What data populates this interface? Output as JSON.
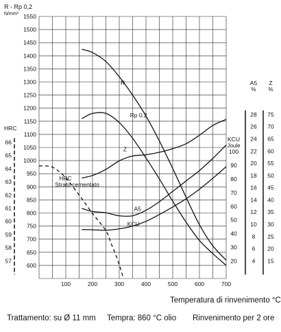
{
  "chart_data": {
    "type": "line",
    "title": "",
    "xlabel": "Temperatura di rinvenimento °C",
    "x_range": [
      0,
      700
    ],
    "x_ticks": [
      100,
      200,
      300,
      400,
      500,
      600,
      700
    ],
    "grid": true,
    "axes": {
      "strength": {
        "label_line1": "R - Rp 0,2",
        "label_line2": "N/mm²",
        "range": [
          550,
          1550
        ],
        "ticks": [
          600,
          650,
          700,
          750,
          800,
          850,
          900,
          950,
          1000,
          1050,
          1100,
          1150,
          1200,
          1250,
          1300,
          1350,
          1400,
          1450,
          1500,
          1550
        ]
      },
      "hrc": {
        "label": "HRC",
        "ticks": [
          57,
          58,
          59,
          60,
          61,
          62,
          63,
          64,
          65,
          66
        ],
        "mapping_strength": [
          617,
          1070
        ]
      },
      "kcu": {
        "label_line1": "KCU",
        "label_line2": "Joule",
        "range": [
          20,
          100
        ],
        "ticks": [
          20,
          30,
          40,
          50,
          60,
          70,
          80,
          90,
          100
        ],
        "mapping_strength": [
          617,
          1034
        ]
      },
      "a5": {
        "label_line1": "A5",
        "label_line2": "%",
        "range": [
          4,
          28
        ],
        "ticks": [
          4,
          6,
          8,
          10,
          12,
          14,
          16,
          18,
          20,
          22,
          24,
          26,
          28
        ],
        "mapping_strength": [
          617,
          1176
        ]
      },
      "z": {
        "label_line1": "Z",
        "label_line2": "%",
        "range": [
          15,
          75
        ],
        "ticks": [
          15,
          20,
          25,
          30,
          35,
          40,
          45,
          50,
          55,
          60,
          65,
          70,
          75
        ],
        "mapping_strength": [
          617,
          1176
        ]
      }
    },
    "series": [
      {
        "name": "R",
        "axis": "strength",
        "style": "solid",
        "x": [
          160,
          200,
          250,
          300,
          350,
          400,
          450,
          500,
          550,
          600,
          650,
          700
        ],
        "y": [
          1425,
          1412,
          1378,
          1320,
          1250,
          1170,
          1075,
          970,
          860,
          755,
          675,
          620
        ],
        "label_at": [
          305,
          1290
        ]
      },
      {
        "name": "Rp 0.2",
        "axis": "strength",
        "style": "solid",
        "x": [
          160,
          200,
          250,
          300,
          350,
          400,
          450,
          500,
          550,
          600,
          650,
          700
        ],
        "y": [
          1160,
          1180,
          1180,
          1145,
          1085,
          1010,
          930,
          845,
          765,
          695,
          645,
          600
        ],
        "label_at": [
          340,
          1165
        ]
      },
      {
        "name": "Z",
        "axis": "z",
        "style": "solid",
        "x": [
          160,
          200,
          250,
          300,
          350,
          400,
          450,
          500,
          550,
          600,
          650,
          700
        ],
        "y": [
          49,
          50,
          52.5,
          56,
          58,
          58.5,
          59.5,
          61,
          63,
          66.5,
          70.5,
          73
        ],
        "label_at": [
          315,
          60
        ]
      },
      {
        "name": "A5",
        "axis": "a5",
        "style": "solid",
        "x": [
          160,
          200,
          250,
          300,
          350,
          400,
          450,
          500,
          550,
          600,
          650,
          700
        ],
        "y": [
          12.6,
          12.1,
          11.9,
          11.4,
          11.4,
          12.3,
          13.7,
          15.4,
          17.1,
          18.8,
          20.8,
          23
        ],
        "label_at": [
          355,
          12.2
        ]
      },
      {
        "name": "KCU",
        "axis": "kcu",
        "style": "solid",
        "x": [
          160,
          200,
          250,
          300,
          350,
          400,
          450,
          500,
          550,
          600,
          650,
          700
        ],
        "y": [
          43,
          42.8,
          42.5,
          43.5,
          45.5,
          49,
          54,
          59.5,
          65.5,
          72.5,
          80.5,
          89
        ],
        "label_at": [
          330,
          45.5
        ]
      },
      {
        "name": "HRC Strato cementato",
        "label_line1": "HRC",
        "label_line2": "Strato cementato",
        "axis": "hrc",
        "style": "dashed",
        "x": [
          0,
          30,
          60,
          100,
          150,
          200,
          250,
          270,
          290,
          305,
          315
        ],
        "y": [
          64.2,
          64.2,
          64,
          63.3,
          62,
          60.6,
          59.3,
          58.3,
          57.3,
          56.4,
          55.7
        ],
        "label_at": [
          75,
          62.8
        ]
      }
    ]
  },
  "footer": {
    "xlabel": "Temperatura di rinvenimento °C",
    "treatment": "Trattamento: su  Ø 11 mm",
    "quench": "Tempra: 860 °C olio",
    "temper": "Rinvenimento per 2 ore"
  }
}
